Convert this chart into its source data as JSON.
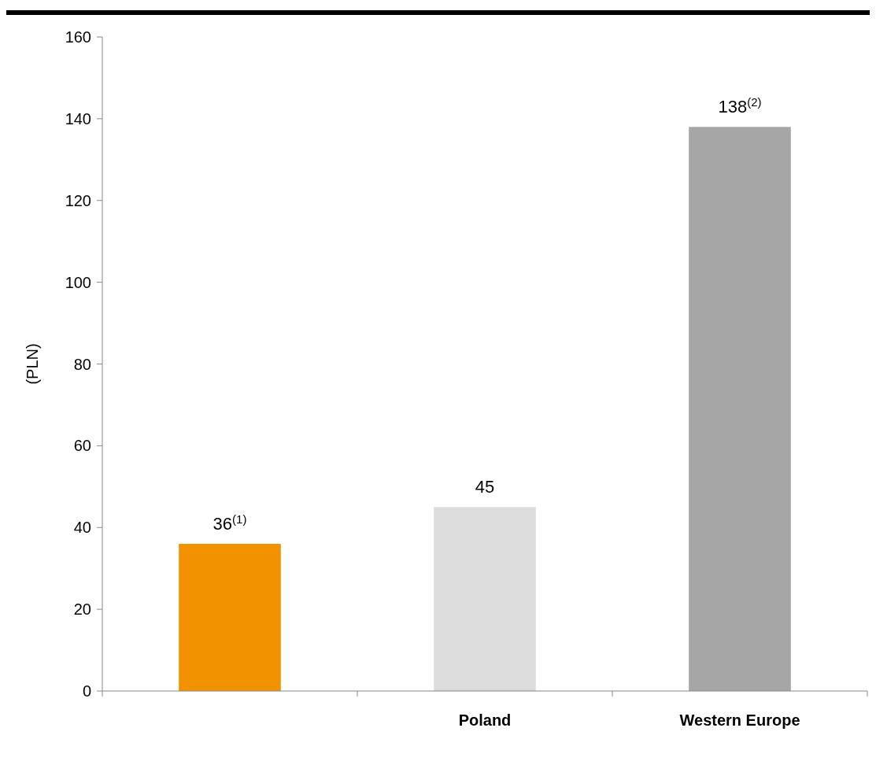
{
  "chart_data": {
    "type": "bar",
    "ylabel": "(PLN)",
    "categories": [
      null,
      "Poland",
      "Western Europe"
    ],
    "values": [
      36,
      45,
      138
    ],
    "colors": [
      "#f39200",
      "#dddddd",
      "#a6a6a6"
    ],
    "value_labels": [
      "36$^{(1)}$",
      "45",
      "138$^{(2)}$"
    ],
    "ylim": [
      0,
      160
    ],
    "yticks": [
      0,
      20,
      40,
      60,
      80,
      100,
      120,
      140,
      160
    ],
    "grid": false
  }
}
